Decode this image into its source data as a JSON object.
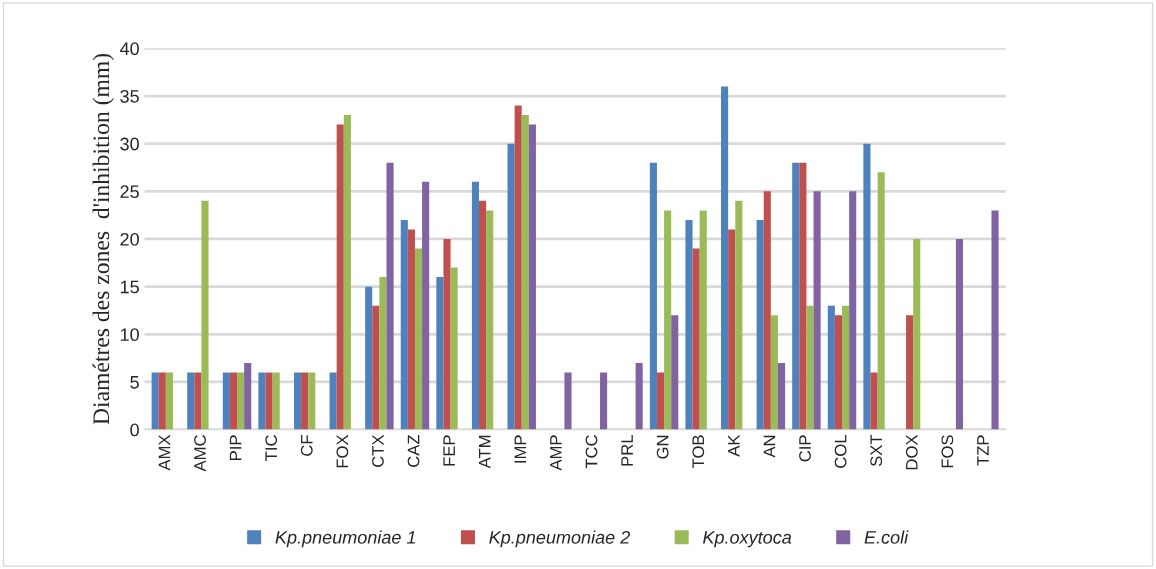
{
  "chart_data": {
    "type": "bar",
    "ylabel": "Diamétres des zones  d'inhibition (mm)",
    "categories": [
      "AMX",
      "AMC",
      "PIP",
      "TIC",
      "CF",
      "FOX",
      "CTX",
      "CAZ",
      "FEP",
      "ATM",
      "IMP",
      "AMP",
      "TCC",
      "PRL",
      "GN",
      "TOB",
      "AK",
      "AN",
      "CIP",
      "COL",
      "SXT",
      "DOX",
      "FOS",
      "TZP"
    ],
    "series": [
      {
        "name": "Kp.pneumoniae 1",
        "color": "#4f81bd",
        "values": [
          6,
          6,
          6,
          6,
          6,
          6,
          15,
          22,
          16,
          26,
          30,
          null,
          null,
          null,
          28,
          22,
          36,
          22,
          28,
          13,
          30,
          null,
          null,
          null
        ]
      },
      {
        "name": "Kp.pneumoniae 2",
        "color": "#c0504d",
        "values": [
          6,
          6,
          6,
          6,
          6,
          32,
          13,
          21,
          20,
          24,
          34,
          null,
          null,
          null,
          6,
          19,
          21,
          25,
          28,
          12,
          6,
          12,
          null,
          null
        ]
      },
      {
        "name": "Kp.oxytoca",
        "color": "#9bbb59",
        "values": [
          6,
          24,
          6,
          6,
          6,
          33,
          16,
          19,
          17,
          23,
          33,
          null,
          null,
          null,
          23,
          23,
          24,
          12,
          13,
          13,
          27,
          20,
          null,
          null
        ]
      },
      {
        "name": "E.coli",
        "color": "#8064a2",
        "values": [
          null,
          null,
          7,
          null,
          null,
          null,
          28,
          26,
          null,
          null,
          32,
          6,
          6,
          7,
          12,
          null,
          null,
          7,
          25,
          25,
          null,
          null,
          20,
          23
        ]
      }
    ],
    "ylim": [
      0,
      40
    ],
    "yticks": [
      0,
      5,
      10,
      15,
      20,
      25,
      30,
      35,
      40
    ],
    "grid": "y",
    "legend": "bottom"
  }
}
